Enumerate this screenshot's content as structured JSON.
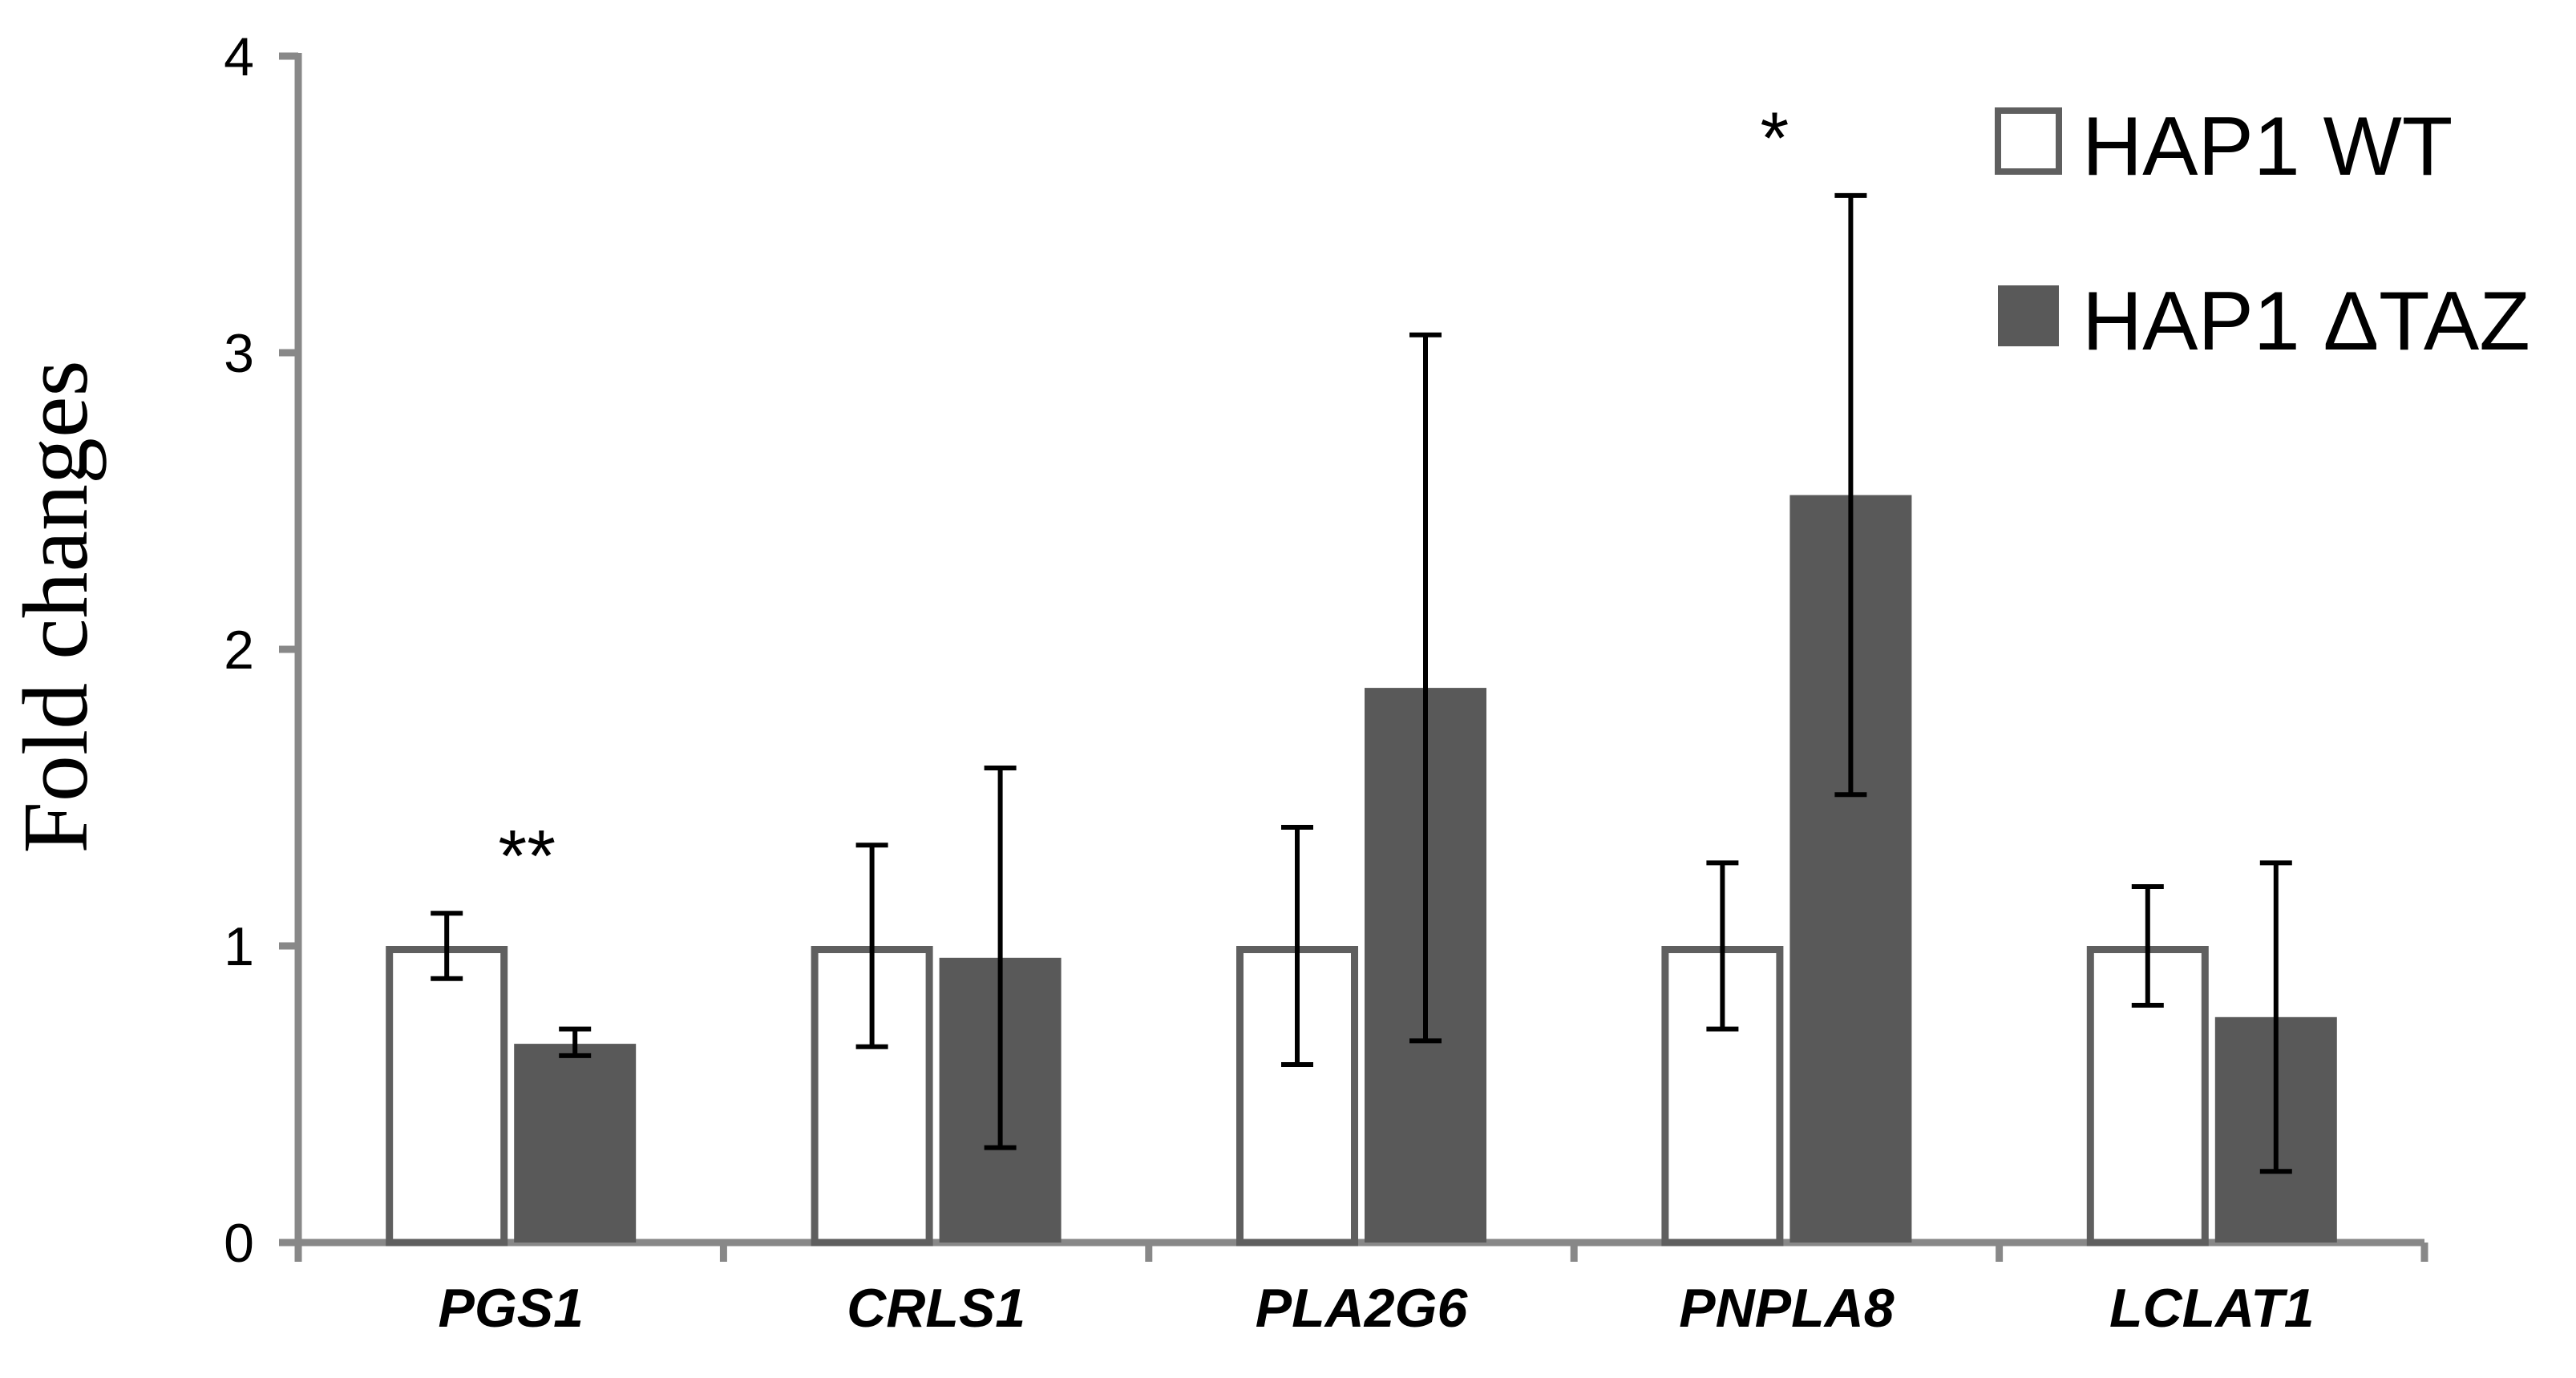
{
  "chart_data": {
    "type": "bar",
    "title": "",
    "xlabel": "",
    "ylabel": "Fold changes",
    "ylim": [
      0,
      4
    ],
    "yticks": [
      0,
      1,
      2,
      3,
      4
    ],
    "categories": [
      "PGS1",
      "CRLS1",
      "PLA2G6",
      "PNPLA8",
      "LCLAT1"
    ],
    "series": [
      {
        "name": "HAP1 WT",
        "fill": "#ffffff",
        "stroke": "#5f5f5f",
        "values": [
          1,
          1,
          1,
          1,
          1
        ],
        "error_low": [
          0.89,
          0.66,
          0.6,
          0.72,
          0.8
        ],
        "error_high": [
          1.11,
          1.34,
          1.4,
          1.28,
          1.2
        ]
      },
      {
        "name": "HAP1 ΔTAZ",
        "fill": "#595959",
        "stroke": "#595959",
        "values": [
          0.67,
          0.96,
          1.87,
          2.52,
          0.76
        ],
        "error_low": [
          0.63,
          0.32,
          0.68,
          1.51,
          0.24
        ],
        "error_high": [
          0.72,
          1.6,
          3.06,
          3.53,
          1.28
        ]
      }
    ],
    "annotations": [
      {
        "category": "PGS1",
        "text": "**"
      },
      {
        "category": "PNPLA8",
        "text": "*"
      }
    ],
    "legend": "top-right",
    "grid": false,
    "axis_color": "#888888"
  }
}
